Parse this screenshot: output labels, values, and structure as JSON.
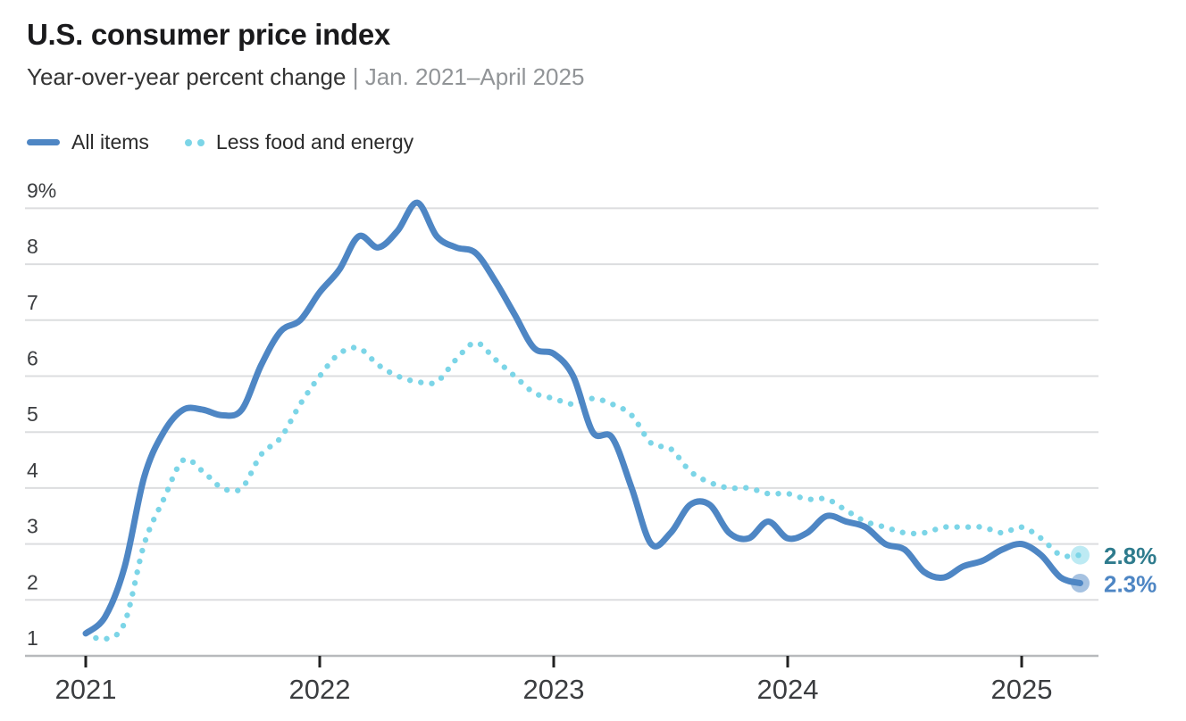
{
  "header": {
    "title": "U.S. consumer price index",
    "subtitle": "Year-over-year percent change",
    "separator": " | ",
    "date_range": "Jan. 2021–April 2025"
  },
  "palette": {
    "all_items_blue": "#4e86c4",
    "core_cyan": "#7cd5e7",
    "core_label_teal": "#2e7b8d",
    "grid": "#dcdddf",
    "axis_line": "#b7b9bc",
    "tick": "#222222",
    "axis_text": "#3b3d40",
    "title_text": "#1a1a1c",
    "subtitle_text": "#343434",
    "subtitle_muted": "#919497"
  },
  "chart_data": {
    "type": "line",
    "title": "U.S. consumer price index",
    "subtitle": "Year-over-year percent change | Jan. 2021–April 2025",
    "xlabel": "",
    "ylabel": "Year-over-year percent change (%)",
    "ylim": [
      1,
      9
    ],
    "grid": "horizontal",
    "legend_position": "top-left",
    "x_unit": "month",
    "x_months": [
      "2021-01",
      "2021-02",
      "2021-03",
      "2021-04",
      "2021-05",
      "2021-06",
      "2021-07",
      "2021-08",
      "2021-09",
      "2021-10",
      "2021-11",
      "2021-12",
      "2022-01",
      "2022-02",
      "2022-03",
      "2022-04",
      "2022-05",
      "2022-06",
      "2022-07",
      "2022-08",
      "2022-09",
      "2022-10",
      "2022-11",
      "2022-12",
      "2023-01",
      "2023-02",
      "2023-03",
      "2023-04",
      "2023-05",
      "2023-06",
      "2023-07",
      "2023-08",
      "2023-09",
      "2023-10",
      "2023-11",
      "2023-12",
      "2024-01",
      "2024-02",
      "2024-03",
      "2024-04",
      "2024-05",
      "2024-06",
      "2024-07",
      "2024-08",
      "2024-09",
      "2024-10",
      "2024-11",
      "2024-12",
      "2025-01",
      "2025-02",
      "2025-03",
      "2025-04"
    ],
    "x_ticks": [
      {
        "label": "2021",
        "month_index": 0
      },
      {
        "label": "2022",
        "month_index": 12
      },
      {
        "label": "2023",
        "month_index": 24
      },
      {
        "label": "2024",
        "month_index": 36
      },
      {
        "label": "2025",
        "month_index": 48
      }
    ],
    "y_ticks": [
      {
        "label": "9%",
        "value": 9
      },
      {
        "label": "8",
        "value": 8
      },
      {
        "label": "7",
        "value": 7
      },
      {
        "label": "6",
        "value": 6
      },
      {
        "label": "5",
        "value": 5
      },
      {
        "label": "4",
        "value": 4
      },
      {
        "label": "3",
        "value": 3
      },
      {
        "label": "2",
        "value": 2
      },
      {
        "label": "1",
        "value": 1
      }
    ],
    "series": [
      {
        "name": "All items",
        "style": "solid",
        "color": "#4e86c4",
        "end_label": "2.3%",
        "end_label_color": "#4e86c4",
        "values": [
          1.4,
          1.7,
          2.6,
          4.2,
          5.0,
          5.4,
          5.4,
          5.3,
          5.4,
          6.2,
          6.8,
          7.0,
          7.5,
          7.9,
          8.5,
          8.3,
          8.6,
          9.1,
          8.5,
          8.3,
          8.2,
          7.7,
          7.1,
          6.5,
          6.4,
          6.0,
          5.0,
          4.9,
          4.0,
          3.0,
          3.2,
          3.7,
          3.7,
          3.2,
          3.1,
          3.4,
          3.1,
          3.2,
          3.5,
          3.4,
          3.3,
          3.0,
          2.9,
          2.5,
          2.4,
          2.6,
          2.7,
          2.9,
          3.0,
          2.8,
          2.4,
          2.3
        ]
      },
      {
        "name": "Less food and energy",
        "style": "dotted",
        "color": "#7cd5e7",
        "end_label": "2.8%",
        "end_label_color": "#2e7b8d",
        "values": [
          1.4,
          1.3,
          1.6,
          3.0,
          3.8,
          4.5,
          4.3,
          4.0,
          4.0,
          4.6,
          4.9,
          5.5,
          6.0,
          6.4,
          6.5,
          6.2,
          6.0,
          5.9,
          5.9,
          6.3,
          6.6,
          6.3,
          6.0,
          5.7,
          5.6,
          5.5,
          5.6,
          5.5,
          5.3,
          4.8,
          4.7,
          4.3,
          4.1,
          4.0,
          4.0,
          3.9,
          3.9,
          3.8,
          3.8,
          3.6,
          3.4,
          3.3,
          3.2,
          3.2,
          3.3,
          3.3,
          3.3,
          3.2,
          3.3,
          3.1,
          2.8,
          2.8
        ]
      }
    ]
  }
}
